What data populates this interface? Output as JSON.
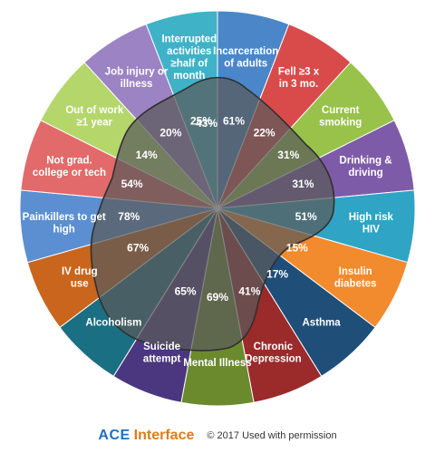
{
  "segments": [
    {
      "label": [
        "Incarceration",
        "of adults"
      ],
      "percent": "61%",
      "color": "#4a86c8"
    },
    {
      "label": [
        "Fell ≥3 x",
        "in 3 mo."
      ],
      "percent": "22%",
      "color": "#d94b4b"
    },
    {
      "label": [
        "Current",
        "smoking"
      ],
      "percent": "31%",
      "color": "#98c24a"
    },
    {
      "label": [
        "Drinking &",
        "driving"
      ],
      "percent": "31%",
      "color": "#7e5ba8"
    },
    {
      "label": [
        "High risk",
        "HIV"
      ],
      "percent": "51%",
      "color": "#2fa4c4"
    },
    {
      "label": [
        "Insulin",
        "diabetes"
      ],
      "percent": "15%",
      "color": "#f28a2e"
    },
    {
      "label": [
        "Asthma"
      ],
      "percent": "17%",
      "color": "#1f4e79"
    },
    {
      "label": [
        "Chronic",
        "Depression"
      ],
      "percent": "41%",
      "color": "#9b2a2a"
    },
    {
      "label": [
        "Mental Illness"
      ],
      "percent": "69%",
      "color": "#6b8a2e"
    },
    {
      "label": [
        "Suicide",
        "attempt"
      ],
      "percent": "65%",
      "color": "#4b3680"
    },
    {
      "label": [
        "Alcoholism"
      ],
      "percent": "",
      "color": "#1b6f82"
    },
    {
      "label": [
        "IV drug",
        "use"
      ],
      "percent": "67%",
      "color": "#c9651d"
    },
    {
      "label": [
        "Painkillers to get",
        "high"
      ],
      "percent": "78%",
      "color": "#5b8fd1"
    },
    {
      "label": [
        "Not grad.",
        "college or tech"
      ],
      "percent": "54%",
      "color": "#e26a6a"
    },
    {
      "label": [
        "Out of work",
        "≥1 year"
      ],
      "percent": "14%",
      "color": "#b4d66b"
    },
    {
      "label": [
        "Job injury or",
        "illness"
      ],
      "percent": "20%",
      "color": "#9c83c4"
    },
    {
      "label": [
        "Interrupted",
        "activities",
        "≥half of",
        "month"
      ],
      "percent": "25%",
      "color": "#3fb2c8"
    }
  ],
  "center_percent": "43%",
  "footer": {
    "logo_ace": "ACE",
    "logo_interface": "Interface",
    "copyright": "© 2017 Used with permission"
  }
}
